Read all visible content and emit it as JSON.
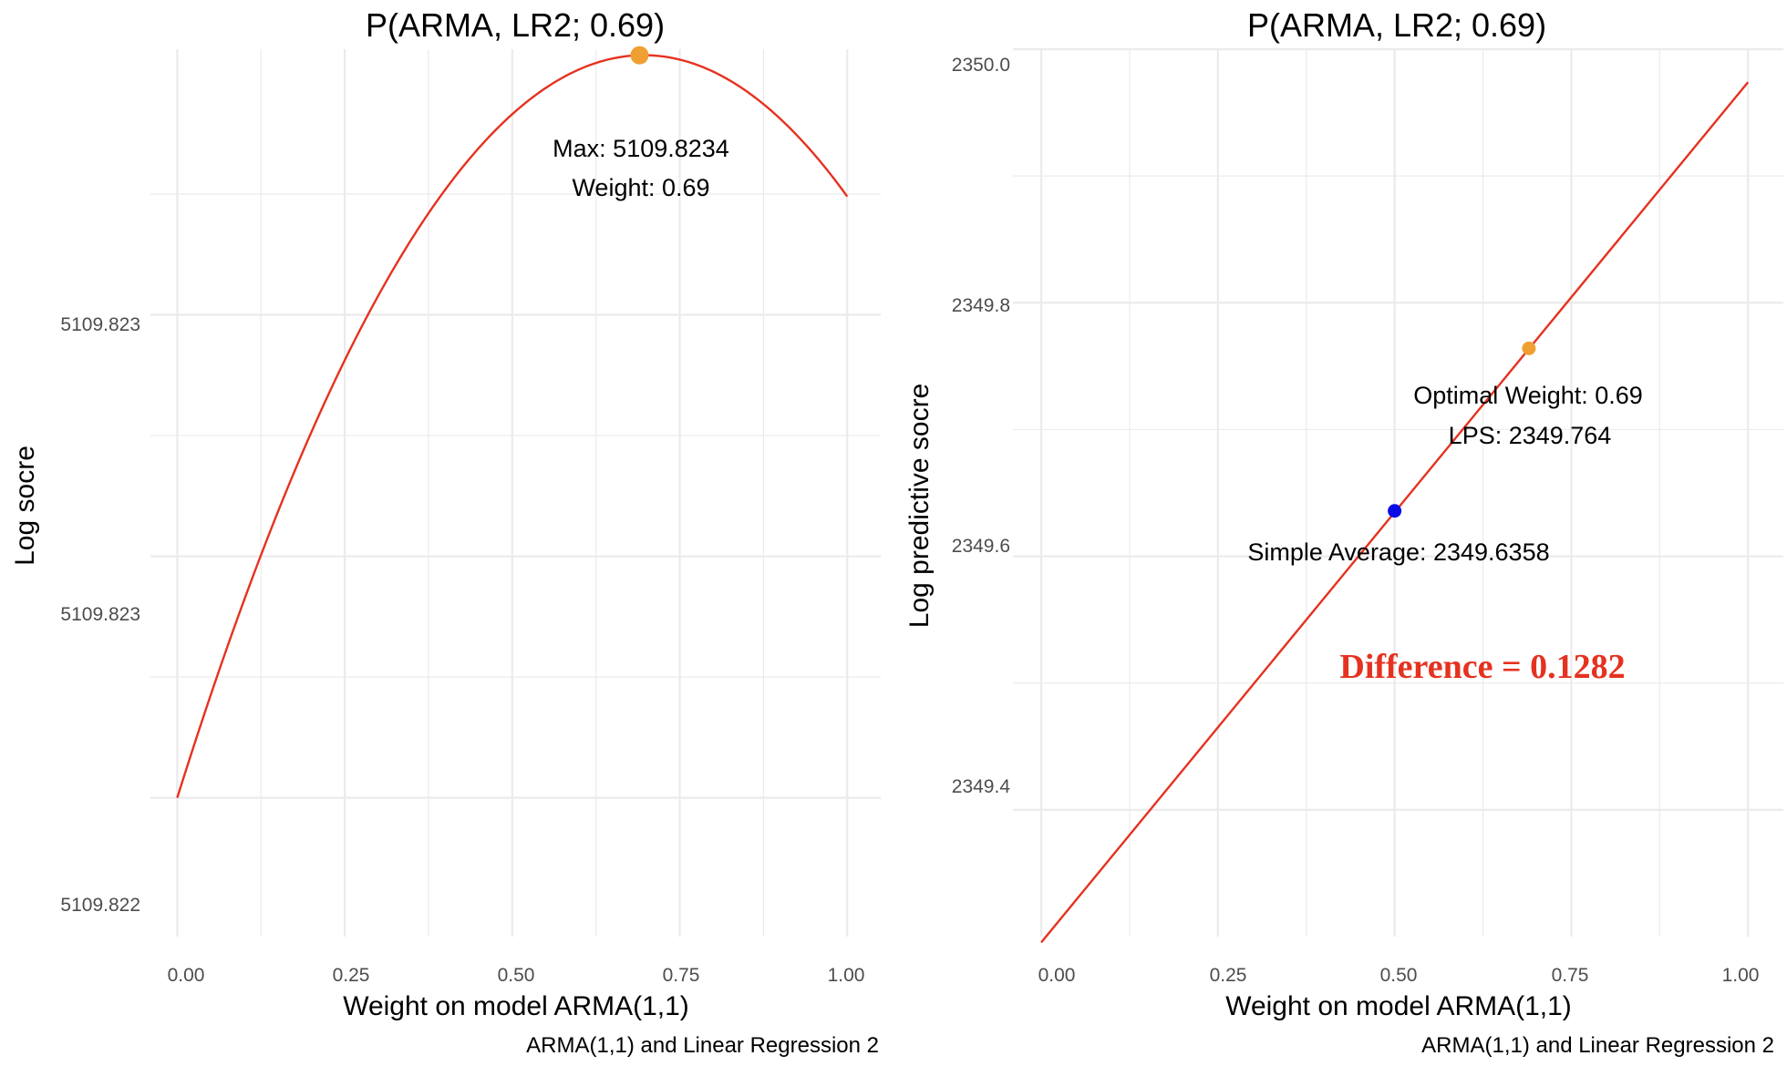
{
  "colors": {
    "line": "#e53220",
    "optimum": "#f0a033",
    "simple_average": "#0a0ae6",
    "difference_text": "#e53220"
  },
  "chart_data": [
    {
      "type": "line",
      "title": "P(ARMA, LR2; 0.69)",
      "xlabel": "Weight on model ARMA(1,1)",
      "ylabel": "Log socre",
      "caption": "ARMA(1,1) and Linear Regression 2",
      "xlim": [
        -0.04,
        1.05
      ],
      "ylim": [
        5109.82197,
        5109.82344
      ],
      "grid": true,
      "x_ticks": [
        0.0,
        0.25,
        0.5,
        0.75,
        1.0
      ],
      "x_tick_labels": [
        "0.00",
        "0.25",
        "0.50",
        "0.75",
        "1.00"
      ],
      "y_ticks": [
        5109.8222,
        5109.8226,
        5109.823
      ],
      "y_tick_labels": [
        "5109.822",
        "5109.823",
        "5109.823"
      ],
      "curve": {
        "form": "quadratic",
        "points": [
          [
            0.0,
            5109.8222
          ],
          [
            0.69,
            5109.82343
          ],
          [
            1.0,
            5109.823196
          ]
        ]
      },
      "highlight_point": {
        "x": 0.69,
        "y": 5109.82343
      },
      "annotations": [
        "Max: 5109.8234",
        "Weight: 0.69"
      ]
    },
    {
      "type": "line",
      "title": "P(ARMA, LR2; 0.69)",
      "xlabel": "Weight on model ARMA(1,1)",
      "ylabel": "Log predictive socre",
      "caption": "ARMA(1,1) and Linear Regression 2",
      "xlim": [
        -0.04,
        1.05
      ],
      "ylim": [
        2349.3,
        2350.0
      ],
      "grid": true,
      "x_ticks": [
        0.0,
        0.25,
        0.5,
        0.75,
        1.0
      ],
      "x_tick_labels": [
        "0.00",
        "0.25",
        "0.50",
        "0.75",
        "1.00"
      ],
      "y_ticks": [
        2349.4,
        2349.6,
        2349.8,
        2350.0
      ],
      "y_tick_labels": [
        "2349.4",
        "2349.6",
        "2349.8",
        "2350.0"
      ],
      "line": {
        "points": [
          [
            0.0,
            2349.2954
          ],
          [
            1.0,
            2349.974
          ]
        ]
      },
      "points": [
        {
          "name": "Simple Average",
          "x": 0.5,
          "y": 2349.6358
        },
        {
          "name": "Optimal Weight",
          "x": 0.69,
          "y": 2349.764
        }
      ],
      "annotations": [
        "Optimal Weight: 0.69",
        "LPS: 2349.764",
        "Simple Average: 2349.6358",
        "Difference = 0.1282"
      ]
    }
  ]
}
